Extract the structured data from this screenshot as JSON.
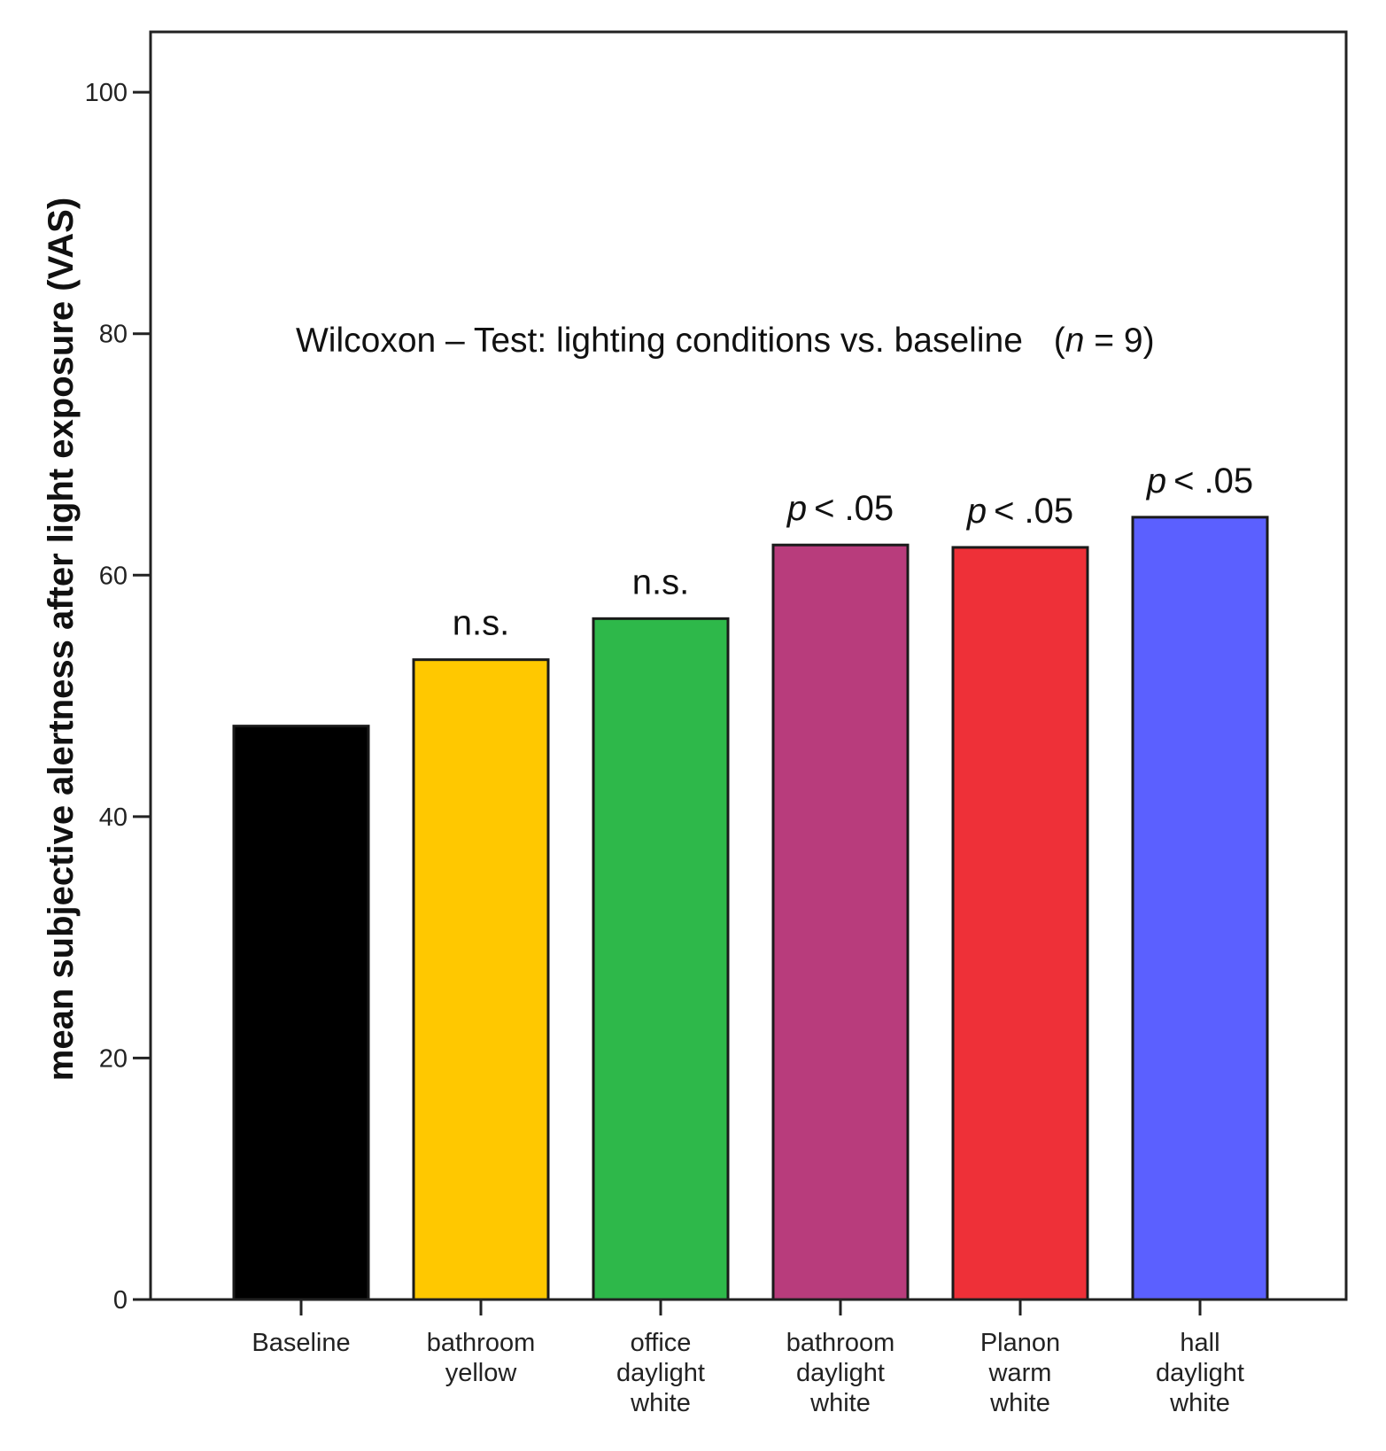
{
  "chart_data": {
    "type": "bar",
    "title": "Wilcoxon – Test: lighting conditions vs. baseline",
    "title_n_symbol": "n",
    "title_n_value": "= 9",
    "xlabel": "",
    "ylabel": "mean subjective alertness after light exposure (VAS)",
    "ylim": [
      0,
      105
    ],
    "yticks": [
      0,
      20,
      40,
      60,
      80,
      100
    ],
    "grid": false,
    "categories": [
      [
        "Baseline"
      ],
      [
        "bathroom",
        "yellow"
      ],
      [
        "office",
        "daylight",
        "white"
      ],
      [
        "bathroom",
        "daylight",
        "white"
      ],
      [
        "Planon",
        "warm",
        "white"
      ],
      [
        "hall",
        "daylight",
        "white"
      ]
    ],
    "values": [
      47.5,
      53,
      56.4,
      62.5,
      62.3,
      64.8
    ],
    "colors": [
      "#000000",
      "#ffc800",
      "#2eb84a",
      "#b83c7c",
      "#ee3038",
      "#5b60ff"
    ],
    "annotations": [
      null,
      {
        "p": "",
        "text": "n.s."
      },
      {
        "p": "",
        "text": "n.s."
      },
      {
        "p": "p",
        "text": "< .05"
      },
      {
        "p": "p",
        "text": "< .05"
      },
      {
        "p": "p",
        "text": "< .05"
      }
    ]
  }
}
